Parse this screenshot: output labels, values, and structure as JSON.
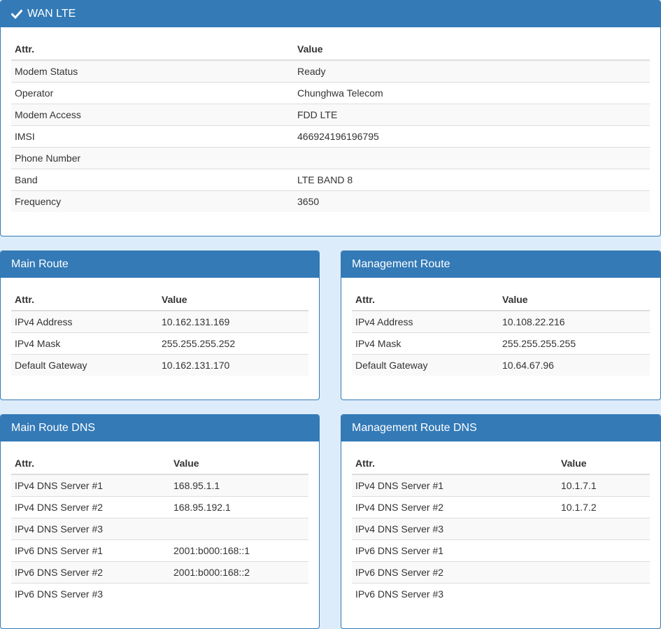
{
  "colors": {
    "accent": "#337ab7",
    "background": "#ddecfa"
  },
  "wan_lte": {
    "title": "WAN LTE",
    "icon": "check-icon",
    "col_attr": "Attr.",
    "col_value": "Value",
    "rows": [
      {
        "attr": "Modem Status",
        "value": "Ready"
      },
      {
        "attr": "Operator",
        "value": "Chunghwa Telecom"
      },
      {
        "attr": "Modem Access",
        "value": "FDD LTE"
      },
      {
        "attr": "IMSI",
        "value": "466924196196795"
      },
      {
        "attr": "Phone Number",
        "value": ""
      },
      {
        "attr": "Band",
        "value": "LTE BAND 8"
      },
      {
        "attr": "Frequency",
        "value": "3650"
      }
    ]
  },
  "main_route": {
    "title": "Main Route",
    "col_attr": "Attr.",
    "col_value": "Value",
    "rows": [
      {
        "attr": "IPv4 Address",
        "value": "10.162.131.169"
      },
      {
        "attr": "IPv4 Mask",
        "value": "255.255.255.252"
      },
      {
        "attr": "Default Gateway",
        "value": "10.162.131.170"
      }
    ]
  },
  "management_route": {
    "title": "Management Route",
    "col_attr": "Attr.",
    "col_value": "Value",
    "rows": [
      {
        "attr": "IPv4 Address",
        "value": "10.108.22.216"
      },
      {
        "attr": "IPv4 Mask",
        "value": "255.255.255.255"
      },
      {
        "attr": "Default Gateway",
        "value": "10.64.67.96"
      }
    ]
  },
  "main_route_dns": {
    "title": "Main Route DNS",
    "col_attr": "Attr.",
    "col_value": "Value",
    "rows": [
      {
        "attr": "IPv4 DNS Server #1",
        "value": "168.95.1.1"
      },
      {
        "attr": "IPv4 DNS Server #2",
        "value": "168.95.192.1"
      },
      {
        "attr": "IPv4 DNS Server #3",
        "value": ""
      },
      {
        "attr": "IPv6 DNS Server #1",
        "value": "2001:b000:168::1"
      },
      {
        "attr": "IPv6 DNS Server #2",
        "value": "2001:b000:168::2"
      },
      {
        "attr": "IPv6 DNS Server #3",
        "value": ""
      }
    ]
  },
  "management_route_dns": {
    "title": "Management Route DNS",
    "col_attr": "Attr.",
    "col_value": "Value",
    "rows": [
      {
        "attr": "IPv4 DNS Server #1",
        "value": "10.1.7.1"
      },
      {
        "attr": "IPv4 DNS Server #2",
        "value": "10.1.7.2"
      },
      {
        "attr": "IPv4 DNS Server #3",
        "value": ""
      },
      {
        "attr": "IPv6 DNS Server #1",
        "value": ""
      },
      {
        "attr": "IPv6 DNS Server #2",
        "value": ""
      },
      {
        "attr": "IPv6 DNS Server #3",
        "value": ""
      }
    ]
  }
}
